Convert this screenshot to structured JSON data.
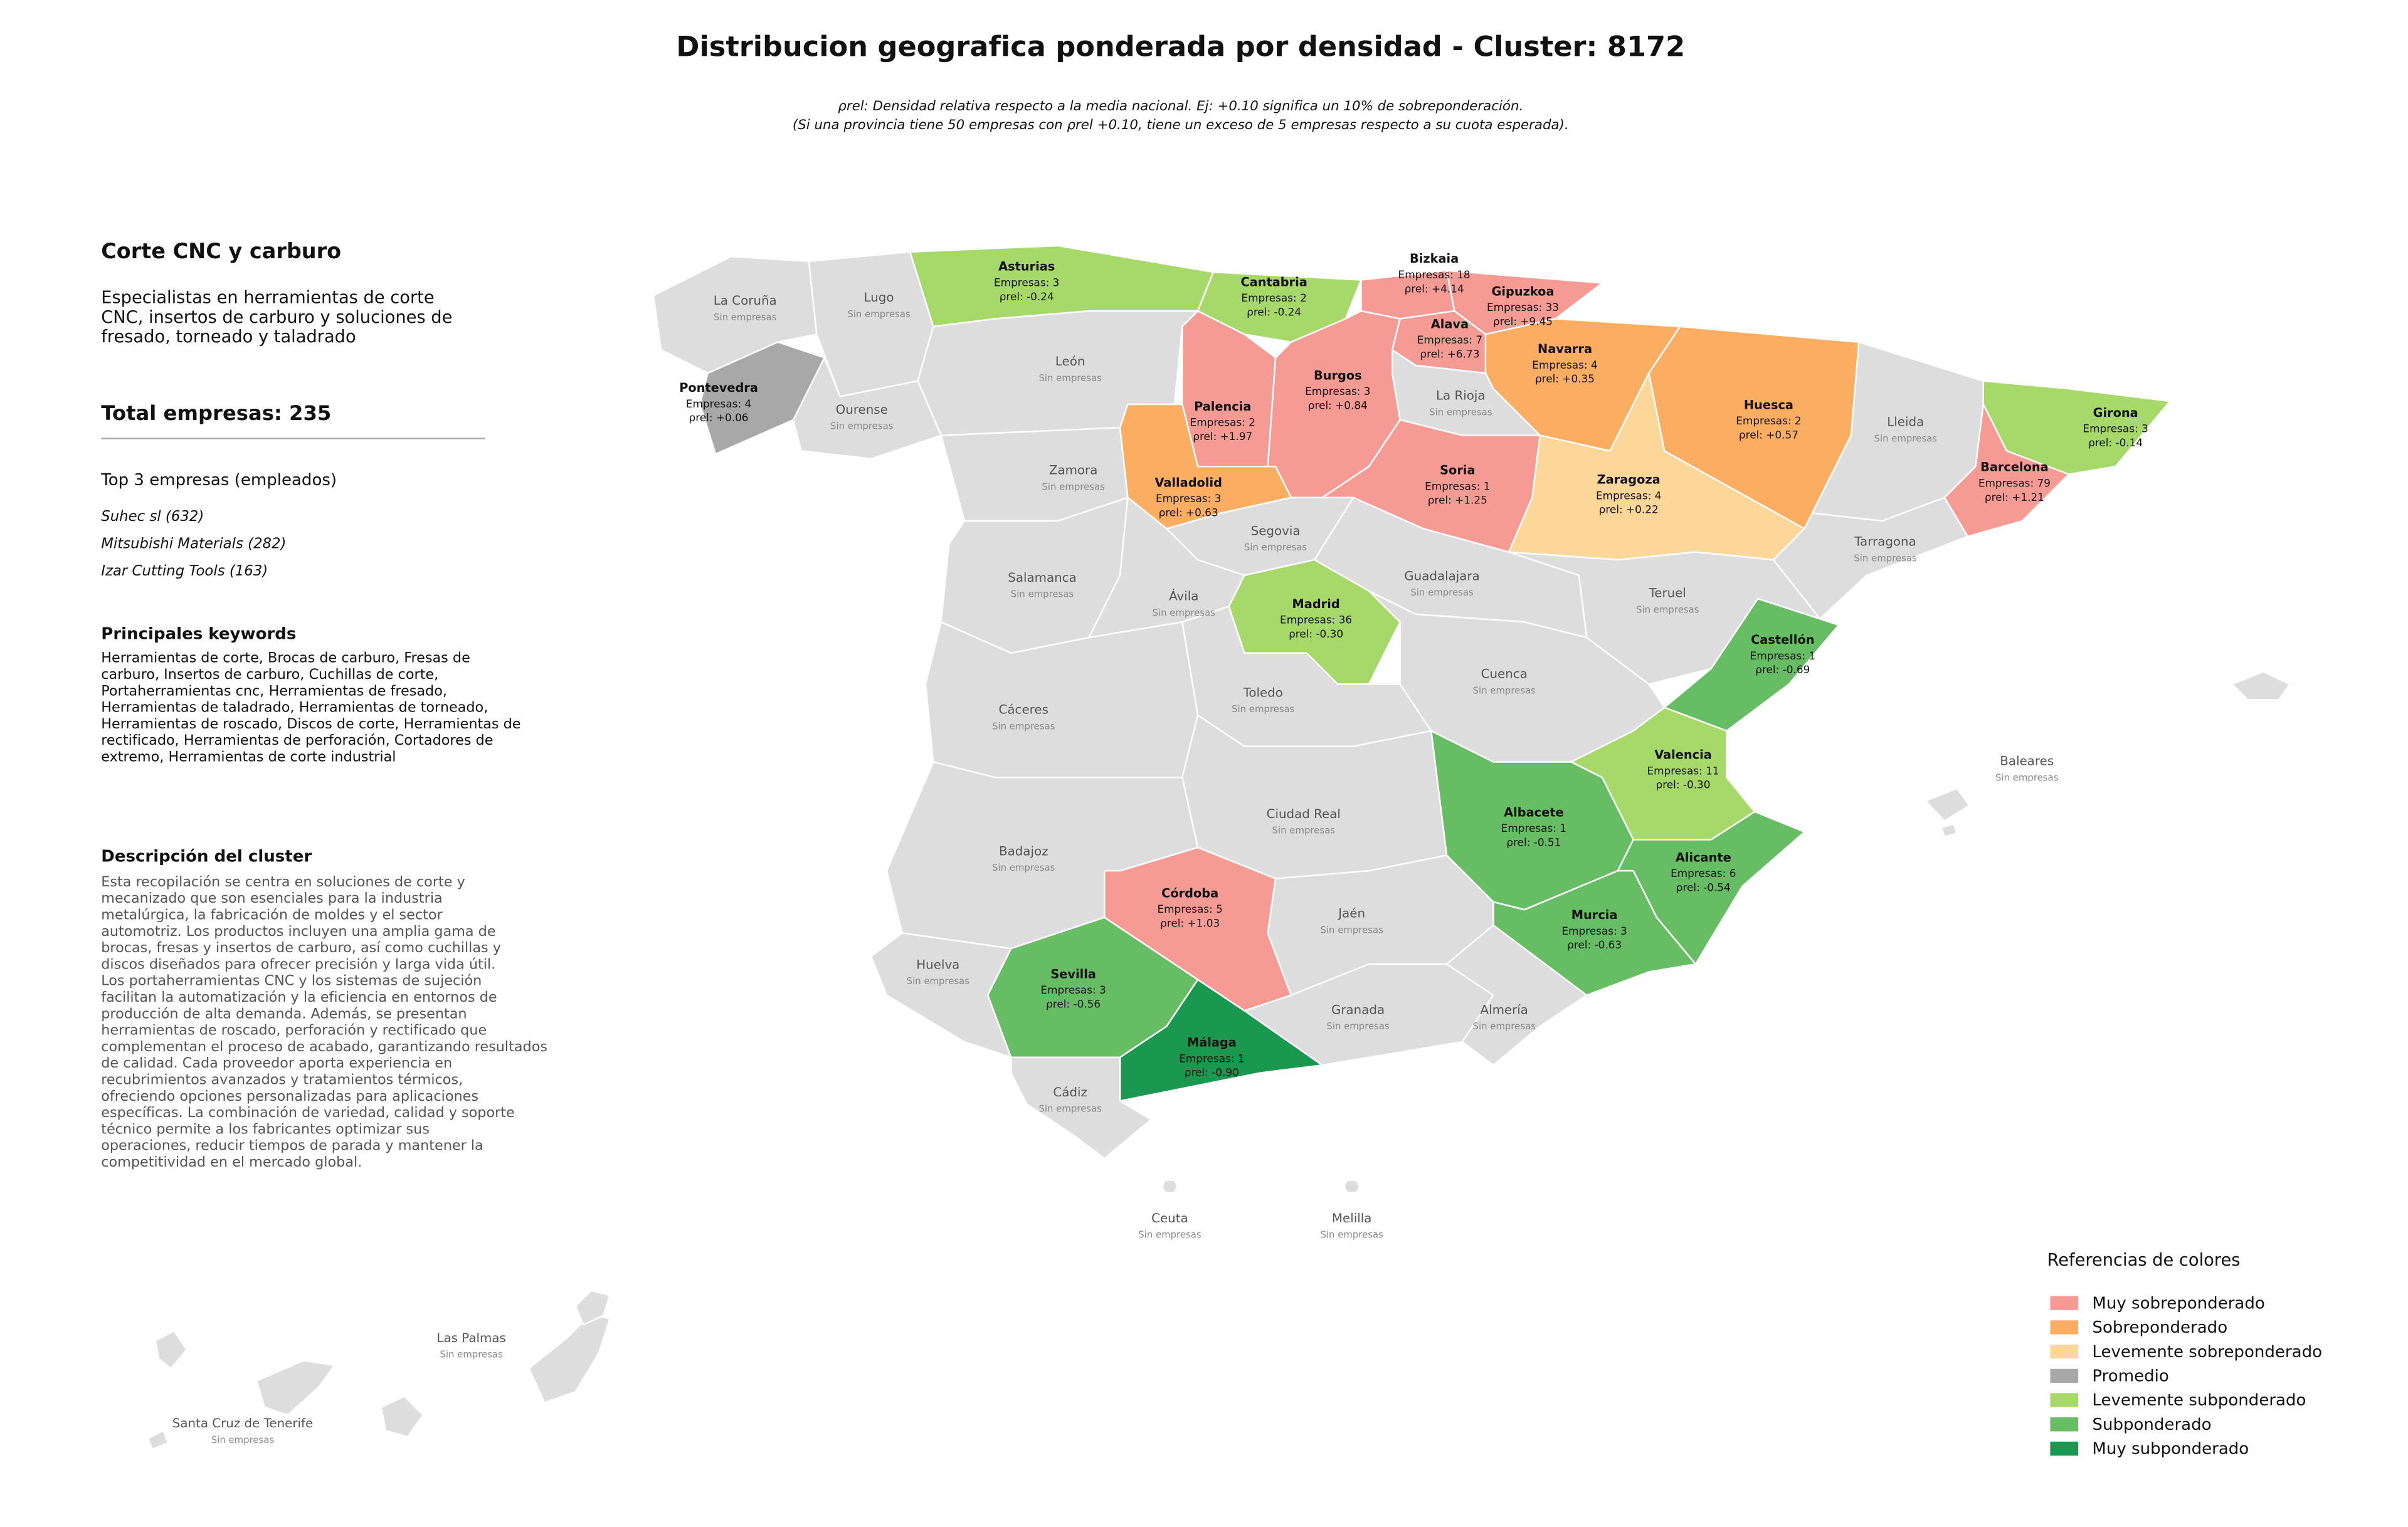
{
  "header": {
    "title": "Distribucion geografica ponderada por densidad - Cluster: 8172",
    "subtitle_lines": [
      "ρrel: Densidad relativa respecto a la media nacional. Ej: +0.10 significa un 10% de sobreponderación.",
      "(Si una provincia tiene 50 empresas con ρrel +0.10, tiene un exceso de 5 empresas respecto a su cuota esperada)."
    ]
  },
  "sidebar": {
    "cluster_name": "Corte CNC y carburo",
    "summary_lines": [
      "Especialistas en herramientas de corte",
      "CNC, insertos de carburo y soluciones de",
      "fresado, torneado y taladrado"
    ],
    "total": "Total empresas: 235",
    "top_title": "Top 3 empresas (empleados)",
    "top_companies": [
      "Suhec sl (632)",
      "Mitsubishi Materials (282)",
      "Izar Cutting Tools (163)"
    ],
    "keywords_title": "Principales keywords",
    "keywords_lines": [
      "Herramientas de corte, Brocas de carburo, Fresas de",
      "carburo, Insertos de carburo, Cuchillas de corte,",
      "Portaherramientas cnc, Herramientas de fresado,",
      "Herramientas de taladrado, Herramientas de torneado,",
      "Herramientas de roscado, Discos de corte, Herramientas de",
      "rectificado, Herramientas de perforación, Cortadores de",
      "extremo, Herramientas de corte industrial"
    ],
    "description_title": "Descripción del cluster",
    "description_lines": [
      "Esta recopilación se centra en soluciones de corte y",
      "mecanizado que son esenciales para la industria",
      "metalúrgica, la fabricación de moldes y el sector",
      "automotriz. Los productos incluyen una amplia gama de",
      "brocas, fresas y insertos de carburo, así como cuchillas y",
      "discos diseñados para ofrecer precisión y larga vida útil.",
      "Los portaherramientas CNC y los sistemas de sujeción",
      "facilitan la automatización y la eficiencia en entornos de",
      "producción de alta demanda. Además, se presentan",
      "herramientas de roscado, perforación y rectificado que",
      "complementan el proceso de acabado, garantizando resultados",
      "de calidad. Cada proveedor aporta experiencia en",
      "recubrimientos avanzados y tratamientos térmicos,",
      "ofreciendo opciones personalizadas para aplicaciones",
      "específicas. La combinación de variedad, calidad y soporte",
      "técnico permite a los fabricantes optimizar sus",
      "operaciones, reducir tiempos de parada y mantener la",
      "competitividad en el mercado global."
    ]
  },
  "legend": {
    "title": "Referencias de colores",
    "items": [
      {
        "label": "Muy sobreponderado",
        "color": "#f59b94"
      },
      {
        "label": "Sobreponderado",
        "color": "#fbad61"
      },
      {
        "label": "Levemente sobreponderado",
        "color": "#fdd79a"
      },
      {
        "label": "Promedio",
        "color": "#a8a8a8"
      },
      {
        "label": "Levemente subponderado",
        "color": "#a6d96a"
      },
      {
        "label": "Subponderado",
        "color": "#66bd63"
      },
      {
        "label": "Muy subponderado",
        "color": "#1a9850"
      }
    ],
    "no_data_color": "#dddddd"
  },
  "provinces": [
    {
      "name": "La Coruña",
      "note": "Sin empresas"
    },
    {
      "name": "Lugo",
      "note": "Sin empresas"
    },
    {
      "name": "Pontevedra",
      "count": "Empresas: 4",
      "rho": "ρrel: +0.06",
      "category": "Promedio"
    },
    {
      "name": "Ourense",
      "note": "Sin empresas"
    },
    {
      "name": "Asturias",
      "count": "Empresas: 3",
      "rho": "ρrel: -0.24",
      "category": "Levemente subponderado"
    },
    {
      "name": "Cantabria",
      "count": "Empresas: 2",
      "rho": "ρrel: -0.24",
      "category": "Levemente subponderado"
    },
    {
      "name": "Bizkaia",
      "count": "Empresas: 18",
      "rho": "ρrel: +4.14",
      "category": "Muy sobreponderado"
    },
    {
      "name": "Gipuzkoa",
      "count": "Empresas: 33",
      "rho": "ρrel: +9.45",
      "category": "Muy sobreponderado"
    },
    {
      "name": "Alava",
      "count": "Empresas: 7",
      "rho": "ρrel: +6.73",
      "category": "Muy sobreponderado"
    },
    {
      "name": "Navarra",
      "count": "Empresas: 4",
      "rho": "ρrel: +0.35",
      "category": "Sobreponderado"
    },
    {
      "name": "La Rioja",
      "note": "Sin empresas"
    },
    {
      "name": "León",
      "note": "Sin empresas"
    },
    {
      "name": "Palencia",
      "count": "Empresas: 2",
      "rho": "ρrel: +1.97",
      "category": "Muy sobreponderado"
    },
    {
      "name": "Burgos",
      "count": "Empresas: 3",
      "rho": "ρrel: +0.84",
      "category": "Muy sobreponderado"
    },
    {
      "name": "Zamora",
      "note": "Sin empresas"
    },
    {
      "name": "Valladolid",
      "count": "Empresas: 3",
      "rho": "ρrel: +0.63",
      "category": "Sobreponderado"
    },
    {
      "name": "Soria",
      "count": "Empresas: 1",
      "rho": "ρrel: +1.25",
      "category": "Muy sobreponderado"
    },
    {
      "name": "Segovia",
      "note": "Sin empresas"
    },
    {
      "name": "Zaragoza",
      "count": "Empresas: 4",
      "rho": "ρrel: +0.22",
      "category": "Levemente sobreponderado"
    },
    {
      "name": "Huesca",
      "count": "Empresas: 2",
      "rho": "ρrel: +0.57",
      "category": "Sobreponderado"
    },
    {
      "name": "Lleida",
      "note": "Sin empresas"
    },
    {
      "name": "Girona",
      "count": "Empresas: 3",
      "rho": "ρrel: -0.14",
      "category": "Levemente subponderado"
    },
    {
      "name": "Barcelona",
      "count": "Empresas: 79",
      "rho": "ρrel: +1.21",
      "category": "Muy sobreponderado"
    },
    {
      "name": "Tarragona",
      "note": "Sin empresas"
    },
    {
      "name": "Teruel",
      "note": "Sin empresas"
    },
    {
      "name": "Castellón",
      "count": "Empresas: 1",
      "rho": "ρrel: -0.69",
      "category": "Subponderado"
    },
    {
      "name": "Guadalajara",
      "note": "Sin empresas"
    },
    {
      "name": "Salamanca",
      "note": "Sin empresas"
    },
    {
      "name": "Ávila",
      "note": "Sin empresas"
    },
    {
      "name": "Madrid",
      "count": "Empresas: 36",
      "rho": "ρrel: -0.30",
      "category": "Levemente subponderado"
    },
    {
      "name": "Cuenca",
      "note": "Sin empresas"
    },
    {
      "name": "Cáceres",
      "note": "Sin empresas"
    },
    {
      "name": "Toledo",
      "note": "Sin empresas"
    },
    {
      "name": "Valencia",
      "count": "Empresas: 11",
      "rho": "ρrel: -0.30",
      "category": "Levemente subponderado"
    },
    {
      "name": "Albacete",
      "count": "Empresas: 1",
      "rho": "ρrel: -0.51",
      "category": "Subponderado"
    },
    {
      "name": "Ciudad Real",
      "note": "Sin empresas"
    },
    {
      "name": "Badajoz",
      "note": "Sin empresas"
    },
    {
      "name": "Alicante",
      "count": "Empresas: 6",
      "rho": "ρrel: -0.54",
      "category": "Subponderado"
    },
    {
      "name": "Murcia",
      "count": "Empresas: 3",
      "rho": "ρrel: -0.63",
      "category": "Subponderado"
    },
    {
      "name": "Córdoba",
      "count": "Empresas: 5",
      "rho": "ρrel: +1.03",
      "category": "Muy sobreponderado"
    },
    {
      "name": "Jaén",
      "note": "Sin empresas"
    },
    {
      "name": "Huelva",
      "note": "Sin empresas"
    },
    {
      "name": "Sevilla",
      "count": "Empresas: 3",
      "rho": "ρrel: -0.56",
      "category": "Subponderado"
    },
    {
      "name": "Granada",
      "note": "Sin empresas"
    },
    {
      "name": "Almería",
      "note": "Sin empresas"
    },
    {
      "name": "Málaga",
      "count": "Empresas: 1",
      "rho": "ρrel: -0.90",
      "category": "Muy subponderado"
    },
    {
      "name": "Cádiz",
      "note": "Sin empresas"
    },
    {
      "name": "Baleares",
      "note": "Sin empresas"
    },
    {
      "name": "Ceuta",
      "note": "Sin empresas"
    },
    {
      "name": "Melilla",
      "note": "Sin empresas"
    },
    {
      "name": "Las Palmas",
      "note": "Sin empresas"
    },
    {
      "name": "Santa Cruz de Tenerife",
      "note": "Sin empresas"
    }
  ]
}
